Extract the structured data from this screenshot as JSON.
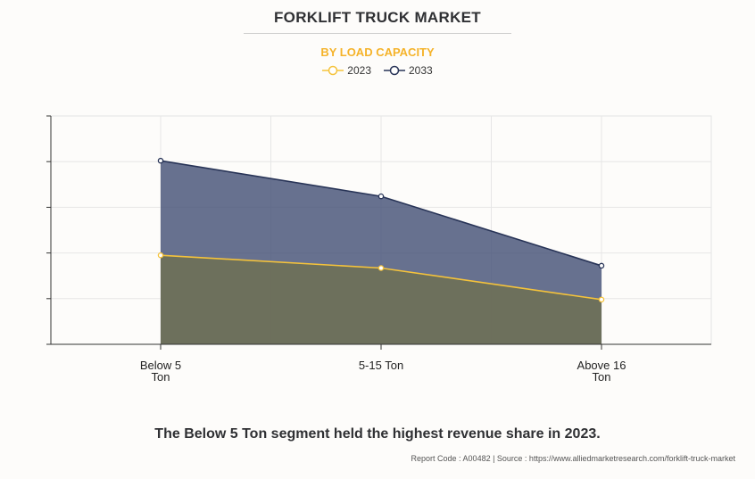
{
  "chart_data": {
    "type": "area",
    "title": "FORKLIFT TRUCK MARKET",
    "subtitle": "BY LOAD CAPACITY",
    "categories": [
      "Below 5 Ton",
      "5-15 Ton",
      "Above 16 Ton"
    ],
    "category_lines": [
      [
        "Below 5",
        "Ton"
      ],
      [
        "5-15 Ton"
      ],
      [
        "Above 16",
        "Ton"
      ]
    ],
    "series": [
      {
        "name": "2023",
        "values": [
          1.95,
          1.67,
          0.98
        ],
        "color": "#f5c33b"
      },
      {
        "name": "2033",
        "values": [
          4.02,
          3.24,
          1.72
        ],
        "color": "#283457"
      }
    ],
    "ylim": [
      0,
      5
    ],
    "y_ticks_count": 5,
    "grid": true,
    "legend_position": "top-center"
  },
  "footer": {
    "note": "The Below 5 Ton segment held the highest revenue share in 2023.",
    "source": "Report Code : A00482  |  Source : https://www.alliedmarketresearch.com/forklift-truck-market"
  }
}
